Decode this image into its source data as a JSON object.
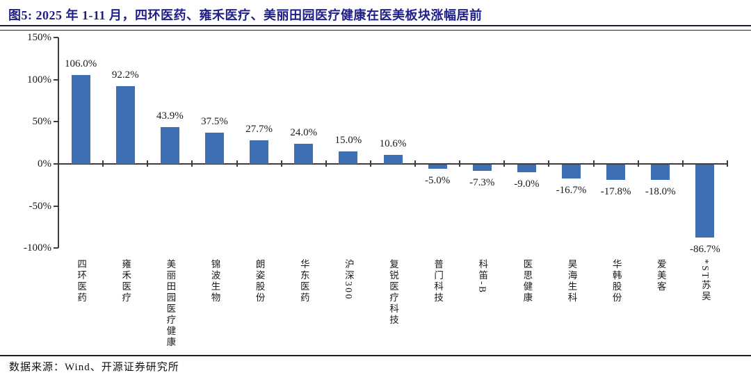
{
  "figure": {
    "title": "图5:  2025 年 1-11 月，四环医药、雍禾医疗、美丽田园医疗健康在医美板块涨幅居前",
    "source": "数据来源：Wind、开源证券研究所",
    "title_color": "#1F2089"
  },
  "chart_data": {
    "type": "bar",
    "title": "图5: 2025 年 1-11 月，四环医药、雍禾医疗、美丽田园医疗健康在医美板块涨幅居前",
    "categories": [
      "四环医药",
      "雍禾医疗",
      "美丽田园医疗健康",
      "锦波生物",
      "朗姿股份",
      "华东医药",
      "沪深300",
      "复锐医疗科技",
      "普门科技",
      "科笛-B",
      "医思健康",
      "昊海生科",
      "华韩股份",
      "爱美客",
      "*ST苏吴"
    ],
    "values": [
      106.0,
      92.2,
      43.9,
      37.5,
      27.7,
      24.0,
      15.0,
      10.6,
      -5.0,
      -7.3,
      -9.0,
      -16.7,
      -17.8,
      -18.0,
      -86.7
    ],
    "data_labels": [
      "106.0%",
      "92.2%",
      "43.9%",
      "37.5%",
      "27.7%",
      "24.0%",
      "15.0%",
      "10.6%",
      "-5.0%",
      "-7.3%",
      "-9.0%",
      "-16.7%",
      "-17.8%",
      "-18.0%",
      "-86.7%"
    ],
    "yticks": [
      {
        "label": "150%",
        "value": 150
      },
      {
        "label": "100%",
        "value": 100
      },
      {
        "label": "50%",
        "value": 50
      },
      {
        "label": "0%",
        "value": 0
      },
      {
        "label": "-50%",
        "value": -50
      },
      {
        "label": "-100%",
        "value": -100
      }
    ],
    "ylim": [
      -100,
      150
    ],
    "xlabel": "",
    "ylabel": "",
    "grid": false,
    "legend": null,
    "bar_color": "#3E6FB4",
    "axis_color": "#3c3c3c",
    "source": "数据来源：Wind、开源证券研究所"
  }
}
